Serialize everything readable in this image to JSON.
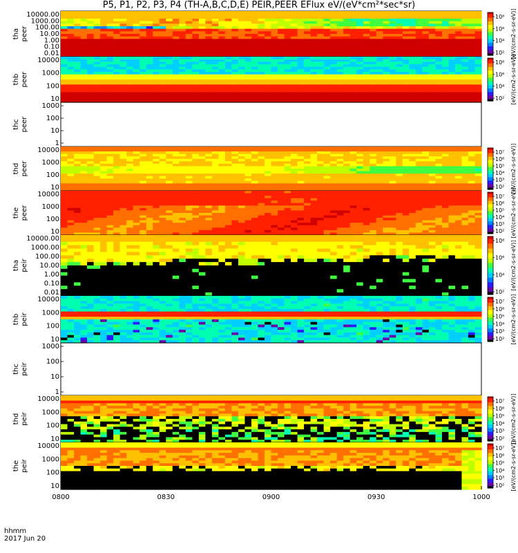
{
  "header": {
    "title": "P5, P1, P2, P3, P4 (TH-A,B,C,D,E) PEIR,PEER EFlux eV/(eV*cm²*sec*sr)"
  },
  "xaxis": {
    "label_line1": "hhmm",
    "label_line2": "2017 Jun 20",
    "ticks": [
      "0800",
      "0830",
      "0900",
      "0930",
      "1000"
    ]
  },
  "chart_data": {
    "type": "heatmap",
    "x_range_minutes": [
      480,
      600
    ],
    "panels": [
      {
        "probe": "tha",
        "instrument": "peer",
        "yscale": "log",
        "ylim": [
          0.01,
          30000
        ],
        "yticks": [
          "10000.00",
          "1000.00",
          "100.00",
          "10.00",
          "1.00",
          "0.10",
          "0.01"
        ],
        "cbar_ticks": [
          "10⁸",
          "10⁶",
          "10⁴",
          "10²"
        ],
        "cbar_label": "[eV/(cm2-s-sr-eV)]",
        "has_data": true,
        "pattern": "peer_a"
      },
      {
        "probe": "thb",
        "instrument": "peer",
        "yscale": "log",
        "ylim": [
          10,
          30000
        ],
        "yticks": [
          "10000",
          "1000",
          "100",
          "10"
        ],
        "cbar_ticks": [
          "10⁸",
          "10⁶",
          "10⁴",
          "10²"
        ],
        "cbar_label": "[eV/(cm2-s-sr-eV)]",
        "has_data": true,
        "pattern": "peer_b"
      },
      {
        "probe": "thc",
        "instrument": "peer",
        "yscale": "log",
        "ylim": [
          1,
          2000
        ],
        "yticks": [
          "1000",
          "100",
          "10",
          "1"
        ],
        "cbar_ticks": [],
        "cbar_label": "",
        "has_data": false,
        "pattern": "none"
      },
      {
        "probe": "thd",
        "instrument": "peer",
        "yscale": "log",
        "ylim": [
          10,
          30000
        ],
        "yticks": [
          "10000",
          "1000",
          "100",
          "10"
        ],
        "cbar_ticks": [
          "10⁷",
          "10⁶",
          "10⁵",
          "10⁴",
          "10³",
          "10²"
        ],
        "cbar_label": "[eV/(cm2-s-sr-eV)]",
        "has_data": true,
        "pattern": "peer_d"
      },
      {
        "probe": "the",
        "instrument": "peer",
        "yscale": "log",
        "ylim": [
          5,
          30000
        ],
        "yticks": [
          "10000",
          "1000",
          "100",
          "10"
        ],
        "cbar_ticks": [
          "10⁷",
          "10⁶",
          "10⁵",
          "10⁴",
          "10³",
          "10²"
        ],
        "cbar_label": "[eV/(cm2-s-sr-eV)]",
        "has_data": true,
        "pattern": "peer_e"
      },
      {
        "probe": "tha",
        "instrument": "peir",
        "yscale": "log",
        "ylim": [
          0.01,
          30000
        ],
        "yticks": [
          "10000.00",
          "1000.00",
          "100.00",
          "10.00",
          "1.00",
          "0.10",
          "0.01"
        ],
        "cbar_ticks": [
          "10⁸",
          "10⁶",
          "10⁴",
          "10²"
        ],
        "cbar_label": "[eV/(cm2-s-sr-eV)]",
        "has_data": true,
        "pattern": "peir_a"
      },
      {
        "probe": "thb",
        "instrument": "peir",
        "yscale": "log",
        "ylim": [
          5,
          30000
        ],
        "yticks": [
          "10000",
          "1000",
          "100",
          "10"
        ],
        "cbar_ticks": [
          "10⁷",
          "10⁶",
          "10⁵",
          "10⁴",
          "10³",
          "10²"
        ],
        "cbar_label": "[eV/(cm2-s-sr-eV)]",
        "has_data": true,
        "pattern": "peir_b"
      },
      {
        "probe": "thc",
        "instrument": "peir",
        "yscale": "log",
        "ylim": [
          1,
          2000
        ],
        "yticks": [
          "1000",
          "100",
          "10",
          "1"
        ],
        "cbar_ticks": [],
        "cbar_label": "",
        "has_data": false,
        "pattern": "none"
      },
      {
        "probe": "thd",
        "instrument": "peir",
        "yscale": "log",
        "ylim": [
          5,
          30000
        ],
        "yticks": [
          "10000",
          "1000",
          "100",
          "10"
        ],
        "cbar_ticks": [
          "10⁷",
          "10⁶",
          "10⁵",
          "10⁴",
          "10³",
          "10²"
        ],
        "cbar_label": "[eV/(cm2-s-sr-eV)]",
        "has_data": true,
        "pattern": "peir_d"
      },
      {
        "probe": "the",
        "instrument": "peir",
        "yscale": "log",
        "ylim": [
          5,
          30000
        ],
        "yticks": [
          "10000",
          "1000",
          "100",
          "10"
        ],
        "cbar_ticks": [
          "10⁷",
          "10⁶",
          "10⁵",
          "10⁴",
          "10³",
          "10²"
        ],
        "cbar_label": "[eV/(cm2-s-sr-eV)]",
        "has_data": true,
        "pattern": "peir_e"
      }
    ],
    "colormap": [
      "#000000",
      "#6a00a8",
      "#2a1cff",
      "#0080ff",
      "#00d0ff",
      "#00ffb0",
      "#40ff40",
      "#c0ff00",
      "#ffff00",
      "#ffc000",
      "#ff7000",
      "#ff2000",
      "#d00000"
    ]
  }
}
